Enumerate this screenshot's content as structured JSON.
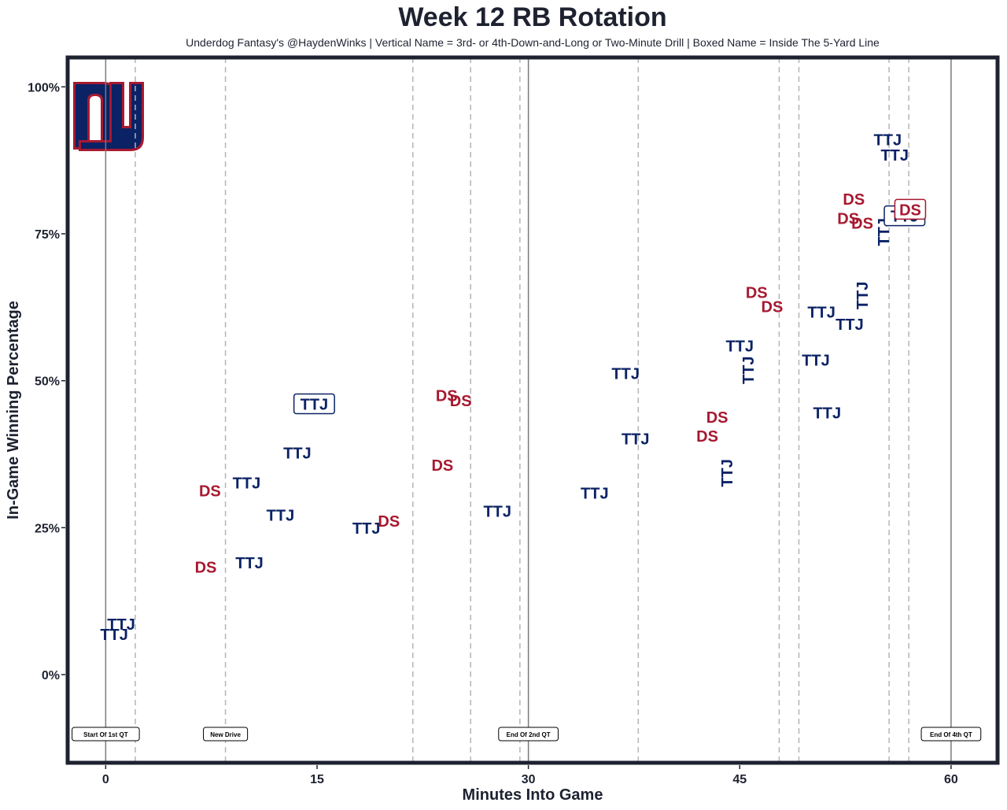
{
  "chart_data": {
    "type": "scatter",
    "title": "Week 12 RB Rotation",
    "subtitle": "Underdog Fantasy's @HaydenWinks | Vertical Name = 3rd- or 4th-Down-and-Long or Two-Minute Drill | Boxed Name = Inside The 5-Yard Line",
    "xlabel": "Minutes Into Game",
    "ylabel": "In-Game Winning Percentage",
    "xlim": [
      -2.7,
      63.3
    ],
    "ylim": [
      -15,
      105
    ],
    "x_ticks": [
      0,
      15,
      30,
      45,
      60
    ],
    "x_tick_labels": [
      "0",
      "15",
      "30",
      "45",
      "60"
    ],
    "y_ticks": [
      0,
      25,
      50,
      75,
      100
    ],
    "y_tick_labels": [
      "0%",
      "25%",
      "50%",
      "75%",
      "100%"
    ],
    "grid": false,
    "colors": {
      "TTJ": "#0b2265",
      "DS": "#a71930",
      "frame": "#1e2230"
    },
    "quarter_lines": [
      0,
      30,
      60
    ],
    "drive_lines": [
      2.1,
      8.5,
      21.8,
      25.9,
      29.4,
      37.8,
      47.8,
      49.2,
      55.6,
      57.0
    ],
    "annotations": [
      {
        "x": 0,
        "text": "Start Of 1st QT"
      },
      {
        "x": 8.5,
        "text": "New Drive"
      },
      {
        "x": 30,
        "text": "End Of 2nd QT"
      },
      {
        "x": 60,
        "text": "End Of 4th QT"
      }
    ],
    "points": [
      {
        "x": 0.6,
        "y": 6.8,
        "label": "TTJ",
        "style": "normal"
      },
      {
        "x": 1.1,
        "y": 8.6,
        "label": "TTJ",
        "style": "normal"
      },
      {
        "x": 7.1,
        "y": 18.3,
        "label": "DS",
        "style": "normal"
      },
      {
        "x": 7.4,
        "y": 31.3,
        "label": "DS",
        "style": "normal"
      },
      {
        "x": 10.2,
        "y": 19.0,
        "label": "TTJ",
        "style": "normal"
      },
      {
        "x": 10.0,
        "y": 32.6,
        "label": "TTJ",
        "style": "normal"
      },
      {
        "x": 12.4,
        "y": 27.1,
        "label": "TTJ",
        "style": "normal"
      },
      {
        "x": 13.6,
        "y": 37.7,
        "label": "TTJ",
        "style": "normal"
      },
      {
        "x": 14.8,
        "y": 46.0,
        "label": "TTJ",
        "style": "boxed"
      },
      {
        "x": 18.5,
        "y": 24.9,
        "label": "TTJ",
        "style": "normal"
      },
      {
        "x": 20.1,
        "y": 26.1,
        "label": "DS",
        "style": "normal"
      },
      {
        "x": 24.2,
        "y": 47.5,
        "label": "DS",
        "style": "normal"
      },
      {
        "x": 25.2,
        "y": 46.6,
        "label": "DS",
        "style": "normal"
      },
      {
        "x": 23.9,
        "y": 35.6,
        "label": "DS",
        "style": "normal"
      },
      {
        "x": 27.8,
        "y": 27.8,
        "label": "TTJ",
        "style": "normal"
      },
      {
        "x": 34.7,
        "y": 30.9,
        "label": "TTJ",
        "style": "normal"
      },
      {
        "x": 36.9,
        "y": 51.2,
        "label": "TTJ",
        "style": "normal"
      },
      {
        "x": 37.6,
        "y": 40.1,
        "label": "TTJ",
        "style": "normal"
      },
      {
        "x": 42.7,
        "y": 40.6,
        "label": "DS",
        "style": "normal"
      },
      {
        "x": 43.4,
        "y": 43.8,
        "label": "DS",
        "style": "normal"
      },
      {
        "x": 44.1,
        "y": 34.3,
        "label": "TTJ",
        "style": "vertical"
      },
      {
        "x": 45.0,
        "y": 55.9,
        "label": "TTJ",
        "style": "normal"
      },
      {
        "x": 45.6,
        "y": 51.8,
        "label": "TTJ",
        "style": "vertical"
      },
      {
        "x": 46.2,
        "y": 65.0,
        "label": "DS",
        "style": "normal"
      },
      {
        "x": 47.3,
        "y": 62.6,
        "label": "DS",
        "style": "normal"
      },
      {
        "x": 50.4,
        "y": 53.5,
        "label": "TTJ",
        "style": "normal"
      },
      {
        "x": 50.8,
        "y": 61.7,
        "label": "TTJ",
        "style": "normal"
      },
      {
        "x": 51.2,
        "y": 44.5,
        "label": "TTJ",
        "style": "normal"
      },
      {
        "x": 52.8,
        "y": 59.6,
        "label": "TTJ",
        "style": "normal"
      },
      {
        "x": 52.7,
        "y": 77.6,
        "label": "DS",
        "style": "normal"
      },
      {
        "x": 53.1,
        "y": 80.9,
        "label": "DS",
        "style": "normal"
      },
      {
        "x": 53.7,
        "y": 76.8,
        "label": "DS",
        "style": "normal"
      },
      {
        "x": 53.7,
        "y": 64.5,
        "label": "TTJ",
        "style": "vertical"
      },
      {
        "x": 55.2,
        "y": 75.3,
        "label": "TTJ",
        "style": "vertical"
      },
      {
        "x": 55.5,
        "y": 91.0,
        "label": "TTJ",
        "style": "normal"
      },
      {
        "x": 56.0,
        "y": 88.4,
        "label": "TTJ",
        "style": "normal"
      },
      {
        "x": 56.7,
        "y": 78.0,
        "label": "TTJ",
        "style": "boxed"
      },
      {
        "x": 57.1,
        "y": 79.1,
        "label": "DS",
        "style": "boxed"
      }
    ]
  }
}
